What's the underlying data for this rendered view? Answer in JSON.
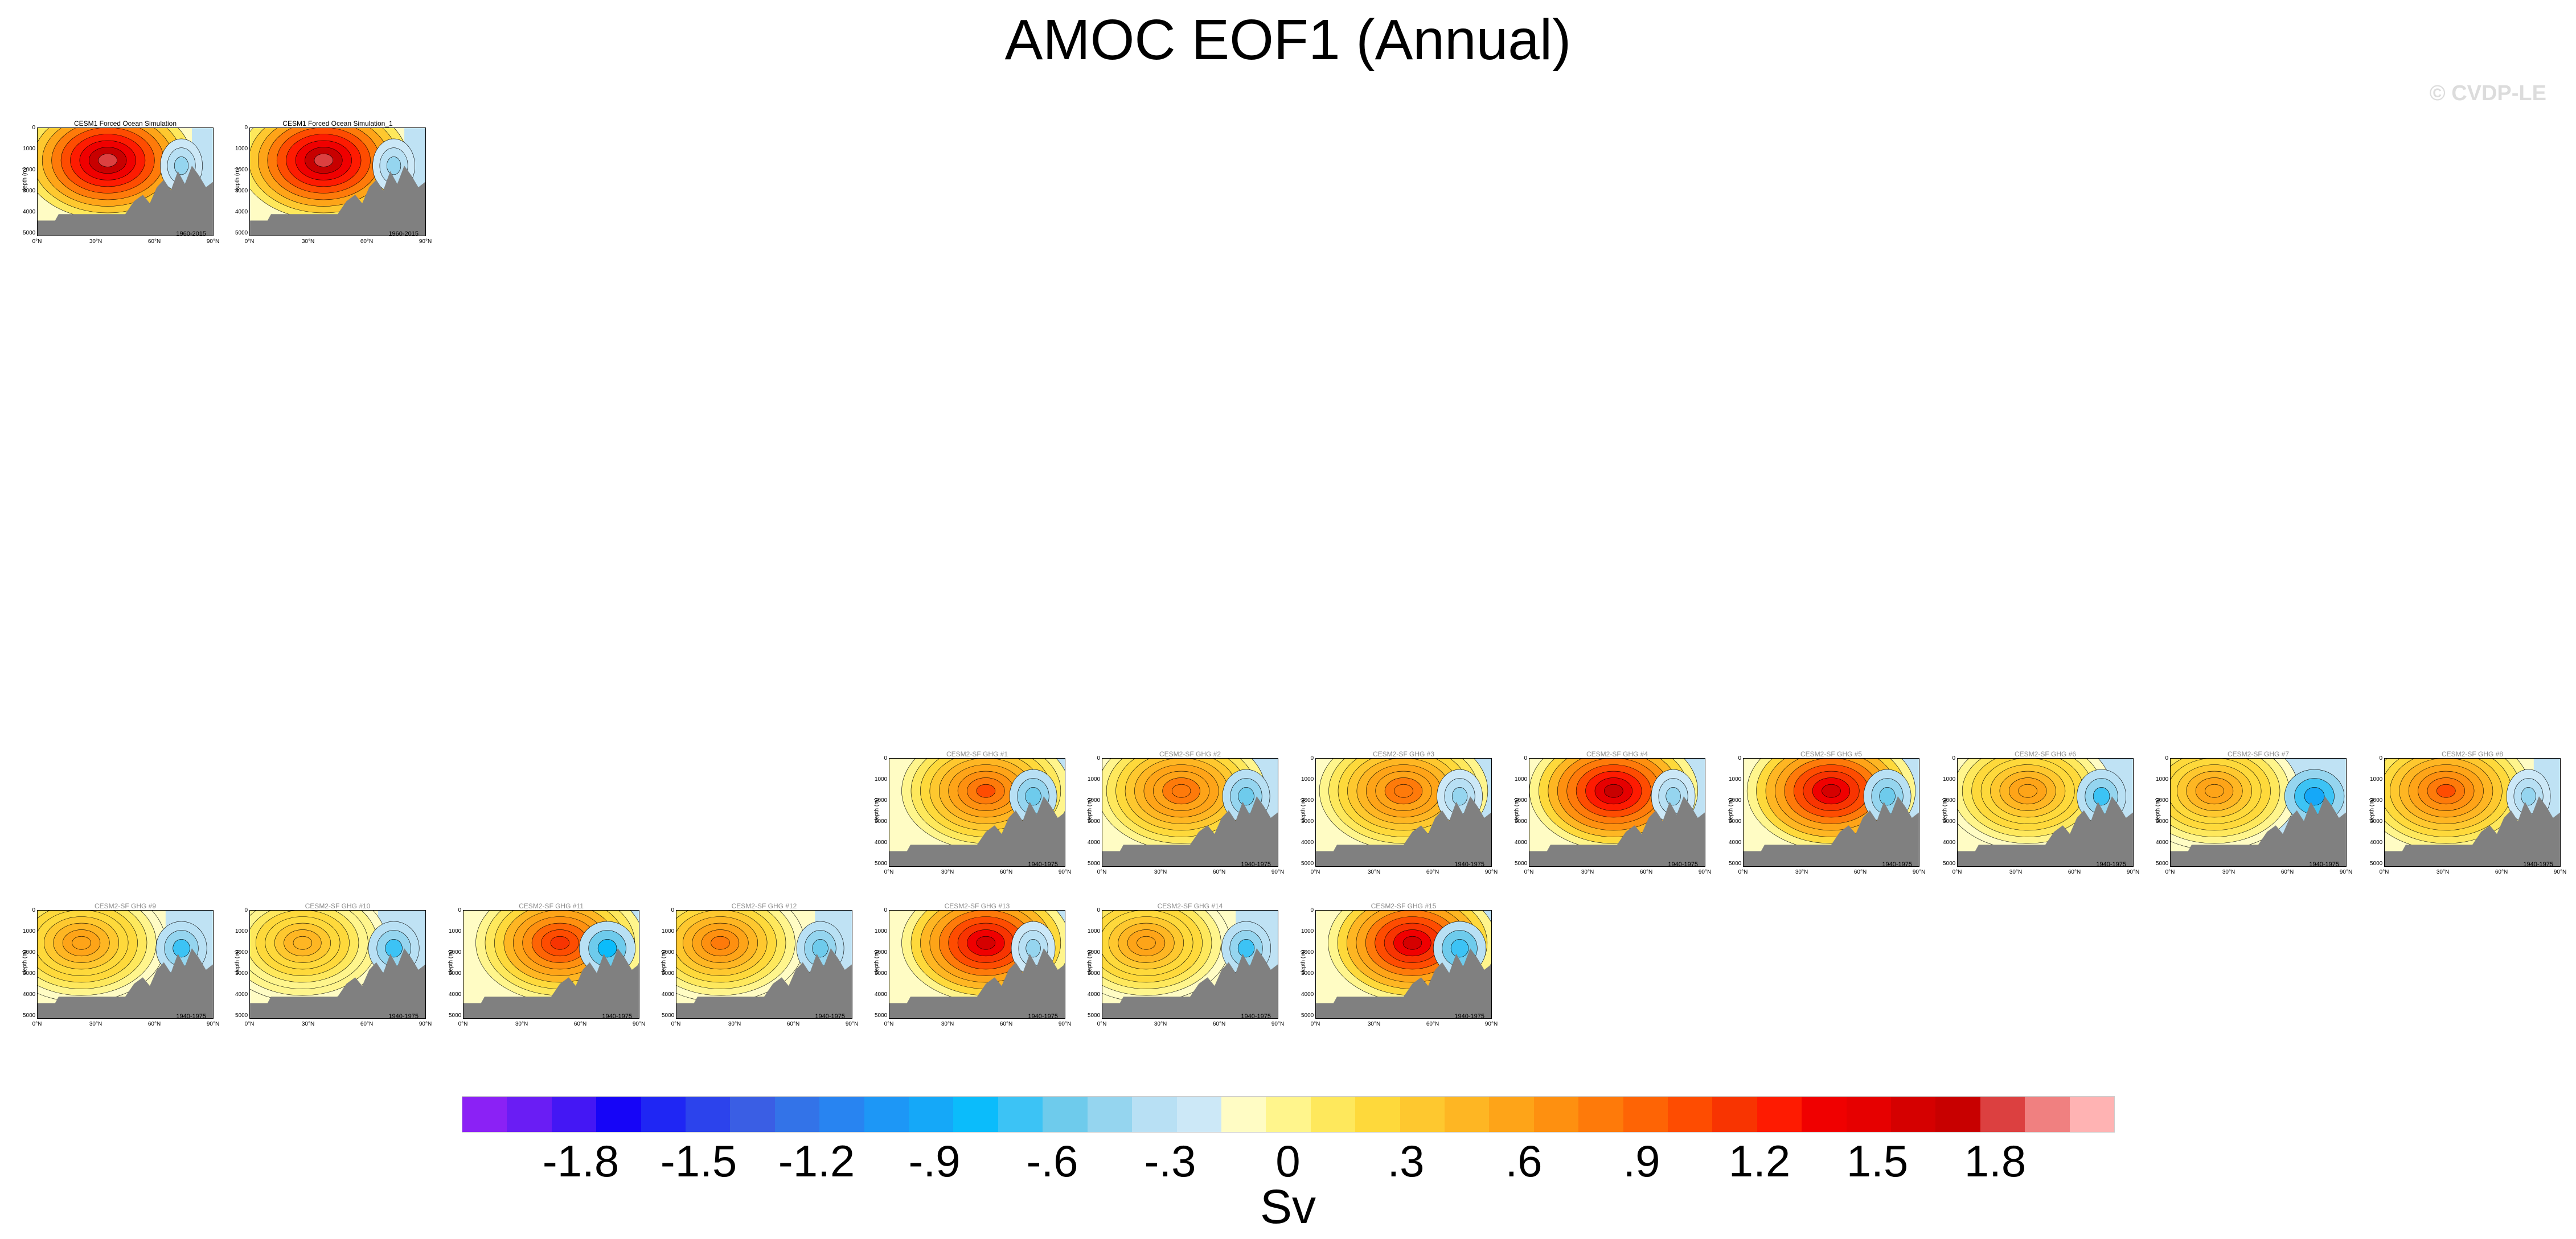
{
  "title": "AMOC EOF1 (Annual)",
  "watermark": "© CVDP-LE",
  "units": "Sv",
  "colors": {
    "positive_hot": "#e60000",
    "neutral": "#fffcc4",
    "negative_light": "#b5def4",
    "land_mask": "#808080"
  },
  "chart_data": {
    "type": "heatmap",
    "description_variable": "AMOC EOF1 (Annual)",
    "colorbar": {
      "unit": "Sv",
      "tick_labels": [
        "-1.8",
        "-1.5",
        "-1.2",
        "-.9",
        "-.6",
        "-.3",
        "0",
        ".3",
        ".6",
        ".9",
        "1.2",
        "1.5",
        "1.8"
      ],
      "colors": [
        "#8b21f5",
        "#6a1df4",
        "#4417f4",
        "#1605f7",
        "#1f26f4",
        "#2c43ec",
        "#3a5ee4",
        "#3373e8",
        "#2884f1",
        "#1d97f6",
        "#15a8f8",
        "#0bbcfb",
        "#3cc3f5",
        "#6ecbec",
        "#95d5ef",
        "#b8e0f4",
        "#cce8f7",
        "#fffcc4",
        "#fff58c",
        "#fee85c",
        "#fed93b",
        "#fec82f",
        "#feb623",
        "#fea418",
        "#fe9010",
        "#fe7a0a",
        "#fe6405",
        "#fe4c01",
        "#f83401",
        "#fe1b01",
        "#f00000",
        "#e60000",
        "#d50000",
        "#c80000",
        "#dc4040",
        "#f08080",
        "#ffb3b3"
      ]
    },
    "panel_axes": {
      "ylabel": "depth (m)",
      "yticks": [
        "0",
        "1000",
        "2000",
        "3000",
        "4000",
        "5000"
      ],
      "xticks": [
        "0°N",
        "30°N",
        "60°N",
        "90°N"
      ]
    },
    "panels": [
      {
        "name": "CESM1 Forced Ocean Simulation",
        "period": "1960-2015",
        "grayTitle": false,
        "max": 1.8,
        "cx": 0.4,
        "neg": 0.2
      },
      {
        "name": "CESM1 Forced Ocean Simulation_1",
        "period": "1960-2015",
        "grayTitle": false,
        "max": 1.8,
        "cx": 0.42,
        "neg": 0.2
      },
      {
        "name": "CESM2-SF GHG #1",
        "period": "1940-1975",
        "grayTitle": true,
        "max": 1.0,
        "cx": 0.55,
        "neg": 0.35
      },
      {
        "name": "CESM2-SF GHG #2",
        "period": "1940-1975",
        "grayTitle": true,
        "max": 0.9,
        "cx": 0.45,
        "neg": 0.35
      },
      {
        "name": "CESM2-SF GHG #3",
        "period": "1940-1975",
        "grayTitle": true,
        "max": 0.9,
        "cx": 0.5,
        "neg": 0.3
      },
      {
        "name": "CESM2-SF GHG #4",
        "period": "1940-1975",
        "grayTitle": true,
        "max": 1.6,
        "cx": 0.48,
        "neg": 0.25
      },
      {
        "name": "CESM2-SF GHG #5",
        "period": "1940-1975",
        "grayTitle": true,
        "max": 1.5,
        "cx": 0.5,
        "neg": 0.35
      },
      {
        "name": "CESM2-SF GHG #6",
        "period": "1940-1975",
        "grayTitle": true,
        "max": 0.7,
        "cx": 0.4,
        "neg": 0.4
      },
      {
        "name": "CESM2-SF GHG #7",
        "period": "1940-1975",
        "grayTitle": true,
        "max": 0.7,
        "cx": 0.25,
        "neg": 0.7
      },
      {
        "name": "CESM2-SF GHG #8",
        "period": "1940-1975",
        "grayTitle": true,
        "max": 1.0,
        "cx": 0.35,
        "neg": 0.25
      },
      {
        "name": "CESM2-SF GHG #9",
        "period": "1940-1975",
        "grayTitle": true,
        "max": 0.7,
        "cx": 0.25,
        "neg": 0.45
      },
      {
        "name": "CESM2-SF GHG #10",
        "period": "1940-1975",
        "grayTitle": true,
        "max": 0.6,
        "cx": 0.3,
        "neg": 0.45
      },
      {
        "name": "CESM2-SF GHG #11",
        "period": "1940-1975",
        "grayTitle": true,
        "max": 1.2,
        "cx": 0.55,
        "neg": 0.6
      },
      {
        "name": "CESM2-SF GHG #12",
        "period": "1940-1975",
        "grayTitle": true,
        "max": 0.8,
        "cx": 0.25,
        "neg": 0.35
      },
      {
        "name": "CESM2-SF GHG #13",
        "period": "1940-1975",
        "grayTitle": true,
        "max": 1.5,
        "cx": 0.55,
        "neg": 0.25
      },
      {
        "name": "CESM2-SF GHG #14",
        "period": "1940-1975",
        "grayTitle": true,
        "max": 0.7,
        "cx": 0.25,
        "neg": 0.4
      },
      {
        "name": "CESM2-SF GHG #15",
        "period": "1940-1975",
        "grayTitle": true,
        "max": 1.5,
        "cx": 0.55,
        "neg": 0.5
      }
    ]
  }
}
